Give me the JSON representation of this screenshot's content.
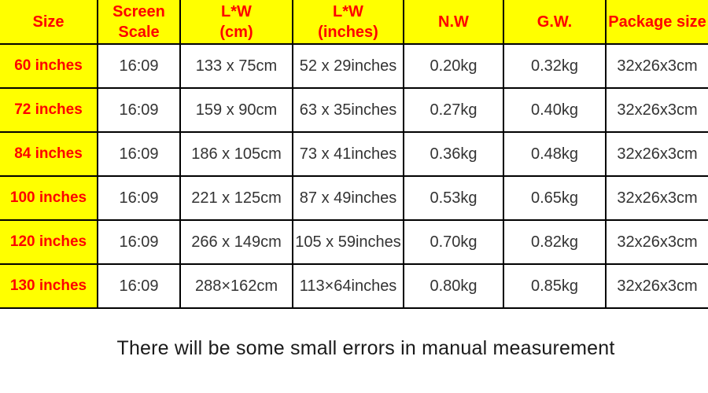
{
  "table": {
    "headers": [
      "Size",
      "Screen\nScale",
      "L*W\n(cm)",
      "L*W\n(inches)",
      "N.W",
      "G.W.",
      "Package size"
    ],
    "rows": [
      [
        "60 inches",
        "16:09",
        "133 x 75cm",
        "52 x 29inches",
        "0.20kg",
        "0.32kg",
        "32x26x3cm"
      ],
      [
        "72 inches",
        "16:09",
        "159 x 90cm",
        "63 x 35inches",
        "0.27kg",
        "0.40kg",
        "32x26x3cm"
      ],
      [
        "84 inches",
        "16:09",
        "186 x 105cm",
        "73 x 41inches",
        "0.36kg",
        "0.48kg",
        "32x26x3cm"
      ],
      [
        "100 inches",
        "16:09",
        "221 x 125cm",
        "87 x 49inches",
        "0.53kg",
        "0.65kg",
        "32x26x3cm"
      ],
      [
        "120 inches",
        "16:09",
        "266 x 149cm",
        "105 x 59inches",
        "0.70kg",
        "0.82kg",
        "32x26x3cm"
      ],
      [
        "130 inches",
        "16:09",
        "288×162cm",
        "113×64inches",
        "0.80kg",
        "0.85kg",
        "32x26x3cm"
      ]
    ]
  },
  "footer": {
    "note": "There will be some small errors in manual measurement"
  },
  "colors": {
    "header_bg": "#ffff00",
    "header_text": "#fe0000",
    "cell_text": "#333333",
    "border": "#000000"
  }
}
